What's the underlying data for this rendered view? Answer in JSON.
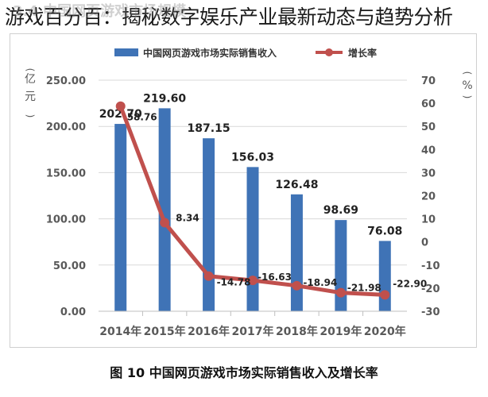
{
  "headline": "游戏百分百：揭秘数字娱乐产业最新动态与趋势分析",
  "watermark": "3.4 中国网页游戏市场规模",
  "caption": "图 10  中国网页游戏市场实际销售收入及增长率",
  "colors": {
    "bar": "#3f73b6",
    "line": "#c0504d",
    "axis": "#595959",
    "grid": "#d9d9d9"
  },
  "chart_data": {
    "type": "bar",
    "categories": [
      "2014年",
      "2015年",
      "2016年",
      "2017年",
      "2018年",
      "2019年",
      "2020年"
    ],
    "series": [
      {
        "name": "中国网页游戏市场实际销售收入",
        "type": "bar",
        "axis": "left",
        "values": [
          202.7,
          219.6,
          187.15,
          156.03,
          126.48,
          98.69,
          76.08
        ],
        "labels": [
          "202.70",
          "219.60",
          "187.15",
          "156.03",
          "126.48",
          "98.69",
          "76.08"
        ]
      },
      {
        "name": "增长率",
        "type": "line",
        "axis": "right",
        "values": [
          58.76,
          8.34,
          -14.78,
          -16.63,
          -18.94,
          -21.98,
          -22.9
        ],
        "labels": [
          "58.76",
          "8.34",
          "-14.78",
          "-16.63",
          "-18.94",
          "-21.98",
          "-22.90"
        ]
      }
    ],
    "ylabel_left": "亿元",
    "ylabel_right": "%",
    "ylim_left": [
      0,
      250
    ],
    "yticks_left": [
      "0.00",
      "50.00",
      "100.00",
      "150.00",
      "200.00",
      "250.00"
    ],
    "ylim_right": [
      -30,
      70
    ],
    "yticks_right": [
      "-30",
      "-20",
      "-10",
      "0",
      "10",
      "20",
      "30",
      "40",
      "50",
      "60",
      "70"
    ],
    "legend_position": "top",
    "grid": true
  }
}
